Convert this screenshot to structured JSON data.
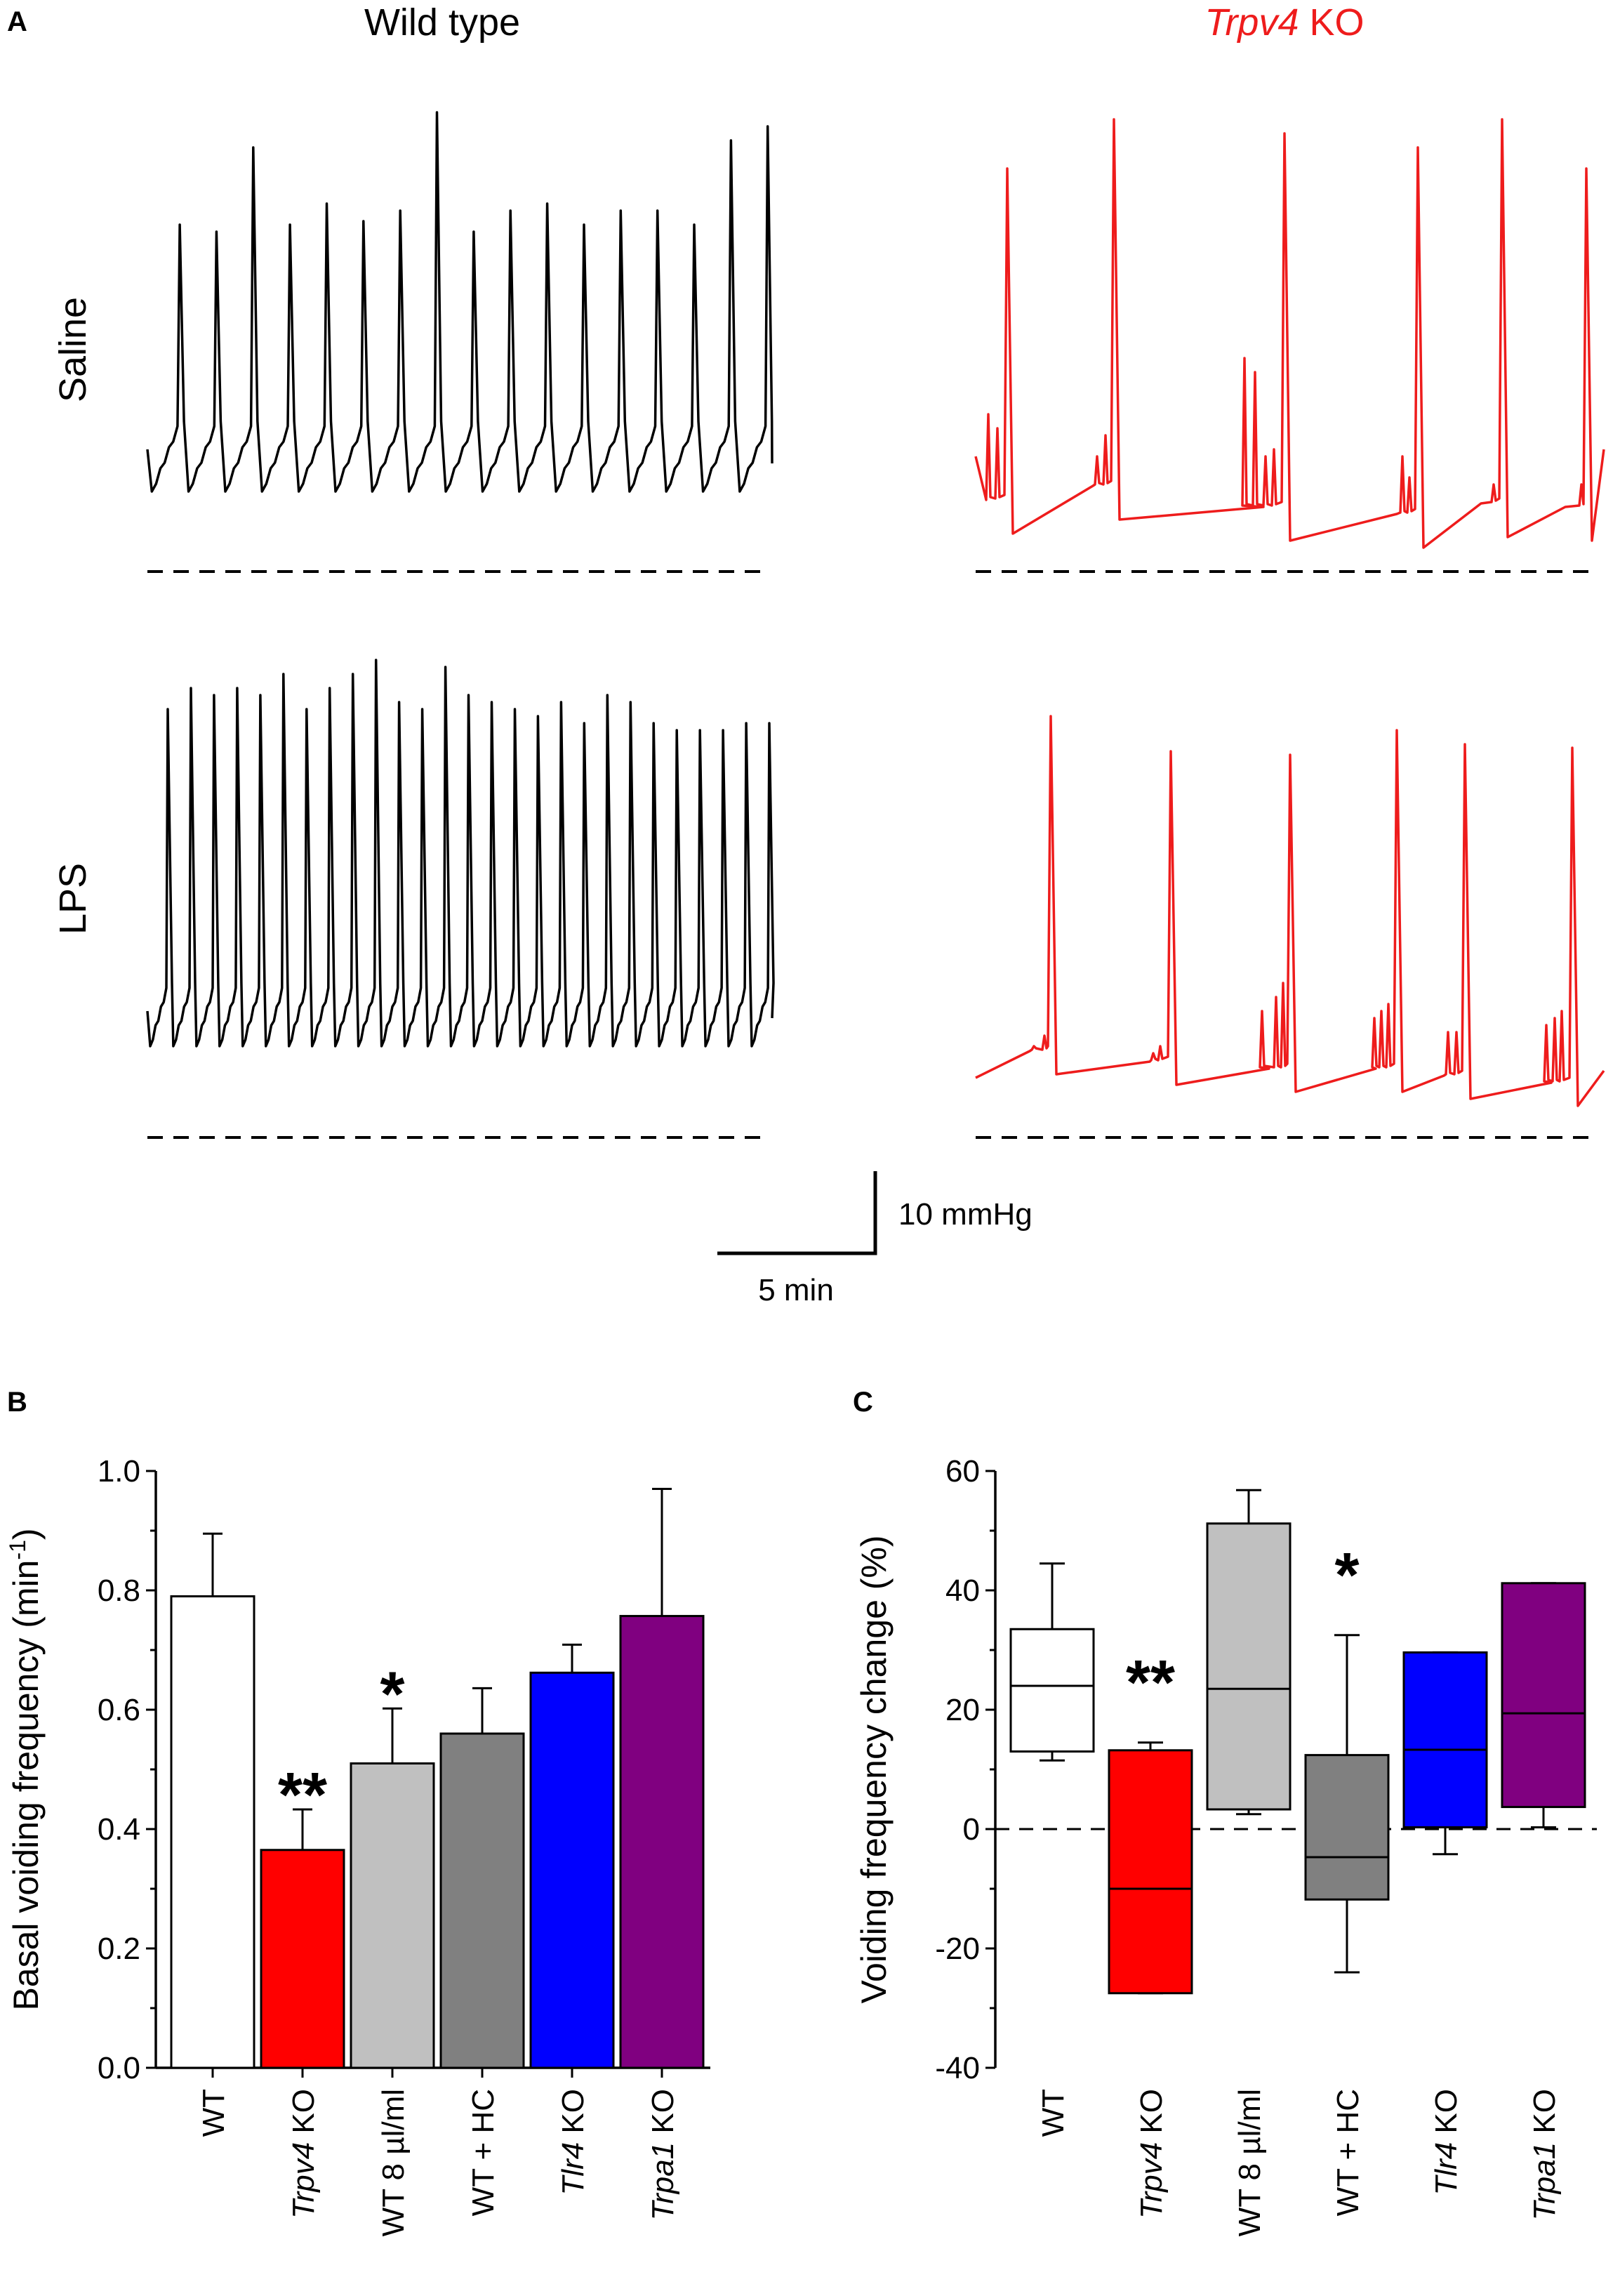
{
  "panels": {
    "A": "A",
    "B": "B",
    "C": "C"
  },
  "traces": {
    "col_titles": [
      "Wild type",
      "Trpv4 KO"
    ],
    "col_title_parts": {
      "trpv4_italic": "Trpv4",
      "ko_suffix": " KO"
    },
    "row_labels": [
      "Saline",
      "LPS"
    ],
    "scale_bar": {
      "vertical": "10 mmHg",
      "horizontal": "5 min"
    },
    "colors": {
      "wild_type": "#000000",
      "trpv4_ko": "#ee1c1c"
    },
    "voids_per_trace": {
      "wt_saline": 18,
      "wt_lps": 27,
      "ko_saline": 6,
      "ko_lps": 6
    }
  },
  "chart_data": [
    {
      "type": "bar",
      "panel": "B",
      "ylabel": "Basal voiding frequency (min",
      "ylabel_sup": "-1",
      "ylabel_end": ")",
      "ylim": [
        0,
        1.0
      ],
      "yticks": [
        "0.0",
        "0.2",
        "0.4",
        "0.6",
        "0.8",
        "1.0"
      ],
      "categories": [
        {
          "italic": "",
          "text": "WT"
        },
        {
          "italic": "Trpv4",
          "text": " KO"
        },
        {
          "italic": "",
          "text": "WT 8 µl/ml"
        },
        {
          "italic": "",
          "text": "WT + HC"
        },
        {
          "italic": "Tlr4",
          "text": " KO"
        },
        {
          "italic": "Trpa1",
          "text": " KO"
        }
      ],
      "values": [
        0.79,
        0.365,
        0.51,
        0.56,
        0.662,
        0.757
      ],
      "errors": [
        0.105,
        0.068,
        0.092,
        0.076,
        0.047,
        0.213
      ],
      "colors": [
        "#ffffff",
        "#ff0000",
        "#c0c0c0",
        "#808080",
        "#0000ff",
        "#800080"
      ],
      "annotations": [
        {
          "index": 1,
          "text": "**"
        },
        {
          "index": 2,
          "text": "*"
        }
      ]
    },
    {
      "type": "box",
      "panel": "C",
      "ylabel": "Voiding frequency change (%)",
      "ylim": [
        -40,
        60
      ],
      "yticks": [
        "-40",
        "-20",
        "0",
        "20",
        "40",
        "60"
      ],
      "categories": [
        {
          "italic": "",
          "text": "WT"
        },
        {
          "italic": "Trpv4",
          "text": " KO"
        },
        {
          "italic": "",
          "text": "WT 8 µl/ml"
        },
        {
          "italic": "",
          "text": "WT + HC"
        },
        {
          "italic": "Tlr4",
          "text": " KO"
        },
        {
          "italic": "Trpa1",
          "text": " KO"
        }
      ],
      "boxes": [
        {
          "whisker_low": 11.5,
          "q1": 13,
          "median": 24,
          "q3": 33.5,
          "whisker_high": 44.5
        },
        {
          "whisker_low": -27.5,
          "q1": -27.5,
          "median": -10,
          "q3": 13.2,
          "whisker_high": 14.5
        },
        {
          "whisker_low": 2.5,
          "q1": 3.3,
          "median": 23.5,
          "q3": 51.2,
          "whisker_high": 56.8
        },
        {
          "whisker_low": -24,
          "q1": -11.8,
          "median": -4.7,
          "q3": 12.4,
          "whisker_high": 32.5
        },
        {
          "whisker_low": -4.2,
          "q1": 0.3,
          "median": 13.3,
          "q3": 29.6,
          "whisker_high": 29.6
        },
        {
          "whisker_low": 0.3,
          "q1": 3.7,
          "median": 19.4,
          "q3": 41.2,
          "whisker_high": 41.2
        }
      ],
      "colors": [
        "#ffffff",
        "#ff0000",
        "#c0c0c0",
        "#808080",
        "#0000ff",
        "#800080"
      ],
      "reference_line": 0,
      "annotations": [
        {
          "index": 1,
          "text": "**"
        },
        {
          "index": 3,
          "text": "*"
        }
      ]
    }
  ]
}
